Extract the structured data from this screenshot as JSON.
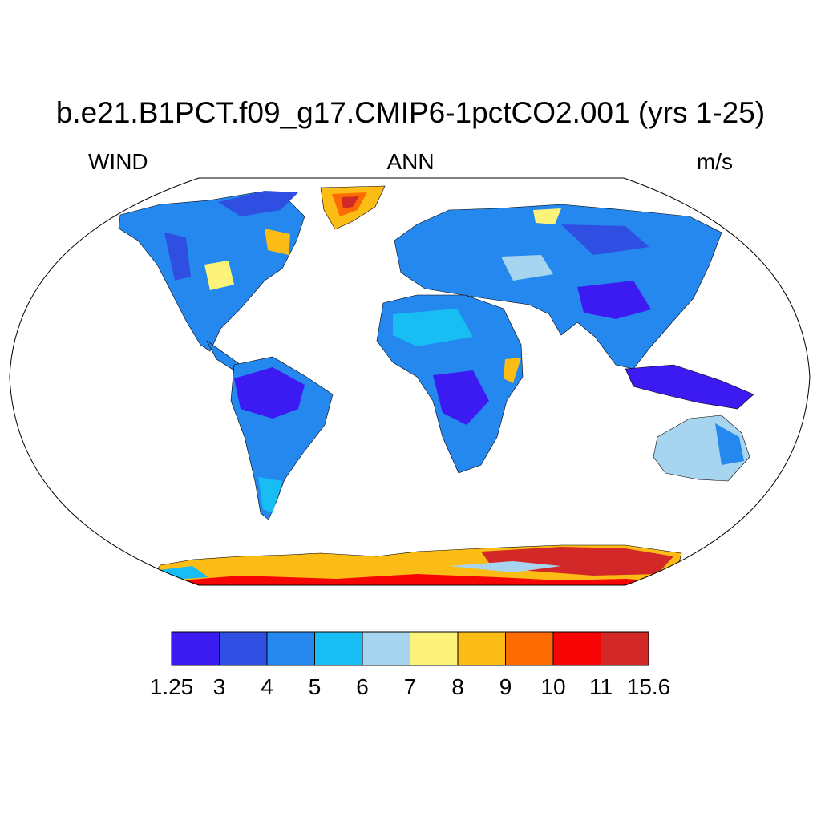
{
  "title": "b.e21.B1PCT.f09_g17.CMIP6-1pctCO2.001 (yrs 1-25)",
  "variable": "WIND",
  "season": "ANN",
  "units": "m/s",
  "colorbar": {
    "colors": [
      "#3c1af2",
      "#2f4fe3",
      "#2588ef",
      "#18bdf4",
      "#a7d4ef",
      "#fdf37a",
      "#fbbd15",
      "#fd6c02",
      "#f70505",
      "#d22828"
    ],
    "labels": [
      "1.25",
      "3",
      "4",
      "5",
      "6",
      "7",
      "8",
      "9",
      "10",
      "11",
      "15.6"
    ]
  }
}
